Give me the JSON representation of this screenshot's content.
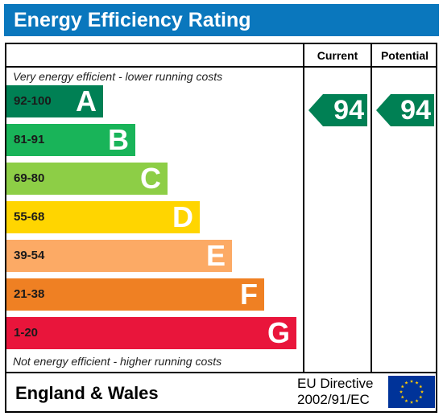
{
  "title": "Energy Efficiency Rating",
  "columns": {
    "current": "Current",
    "potential": "Potential"
  },
  "top_note": "Very energy efficient - lower running costs",
  "bottom_note": "Not energy efficient - higher running costs",
  "chart_data": {
    "type": "bar",
    "categories": [
      "A",
      "B",
      "C",
      "D",
      "E",
      "F",
      "G"
    ],
    "bands": [
      {
        "letter": "A",
        "range": "92-100",
        "min": 92,
        "max": 100,
        "color": "#008054"
      },
      {
        "letter": "B",
        "range": "81-91",
        "min": 81,
        "max": 91,
        "color": "#19b459"
      },
      {
        "letter": "C",
        "range": "69-80",
        "min": 69,
        "max": 80,
        "color": "#8dce46"
      },
      {
        "letter": "D",
        "range": "55-68",
        "min": 55,
        "max": 68,
        "color": "#ffd500"
      },
      {
        "letter": "E",
        "range": "39-54",
        "min": 39,
        "max": 54,
        "color": "#fcaa65"
      },
      {
        "letter": "F",
        "range": "21-38",
        "min": 21,
        "max": 38,
        "color": "#ef8023"
      },
      {
        "letter": "G",
        "range": "1-20",
        "min": 1,
        "max": 20,
        "color": "#e9153b"
      }
    ],
    "current": {
      "value": 94,
      "label": "94",
      "band": "A",
      "color": "#008054"
    },
    "potential": {
      "value": 94,
      "label": "94",
      "band": "A",
      "color": "#008054"
    }
  },
  "footer": {
    "region": "England & Wales",
    "directive_line1": "EU Directive",
    "directive_line2": "2002/91/EC",
    "flag_color": "#003399",
    "star_color": "#ffcc00"
  }
}
